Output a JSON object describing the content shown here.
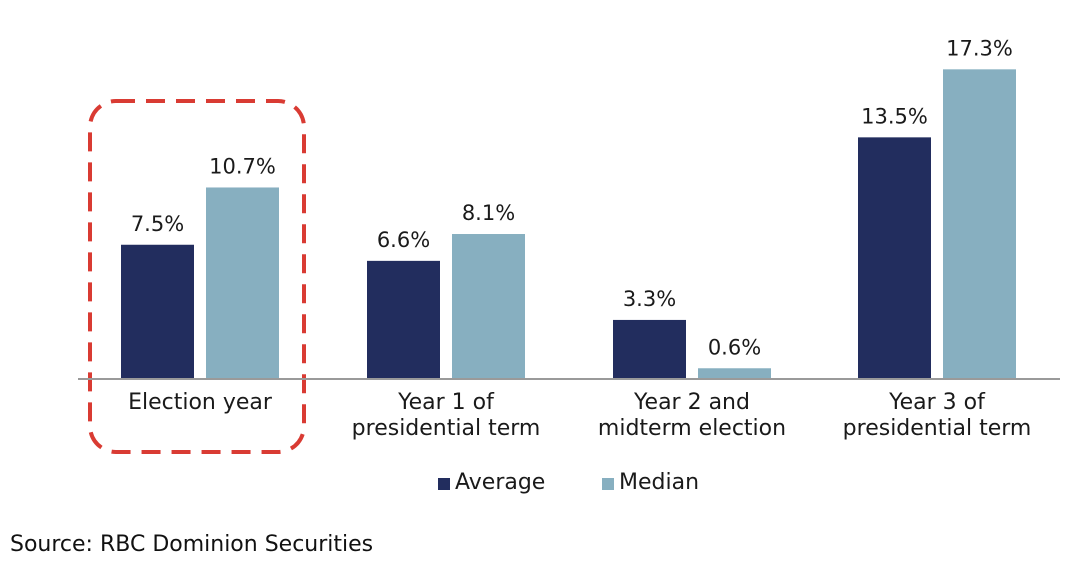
{
  "chart_data": {
    "type": "bar",
    "title": "",
    "xlabel": "",
    "ylabel": "",
    "ylim": [
      0,
      19
    ],
    "grid": false,
    "legend": "bottom-center",
    "categories": [
      [
        "Election year"
      ],
      [
        "Year 1 of",
        "presidential term"
      ],
      [
        "Year 2 and",
        "midterm election"
      ],
      [
        "Year 3 of",
        "presidential term"
      ]
    ],
    "series": [
      {
        "name": "Average",
        "color": "#222d5e",
        "values": [
          7.5,
          6.6,
          3.3,
          13.5
        ],
        "labels": [
          "7.5%",
          "6.6%",
          "3.3%",
          "13.5%"
        ]
      },
      {
        "name": "Median",
        "color": "#87afc0",
        "values": [
          10.7,
          8.1,
          0.6,
          17.3
        ],
        "labels": [
          "10.7%",
          "8.1%",
          "0.6%",
          "17.3%"
        ]
      }
    ],
    "highlight": {
      "category_index": 0,
      "style": "dashed",
      "color": "#d93b33"
    }
  },
  "source": "Source: RBC Dominion Securities"
}
